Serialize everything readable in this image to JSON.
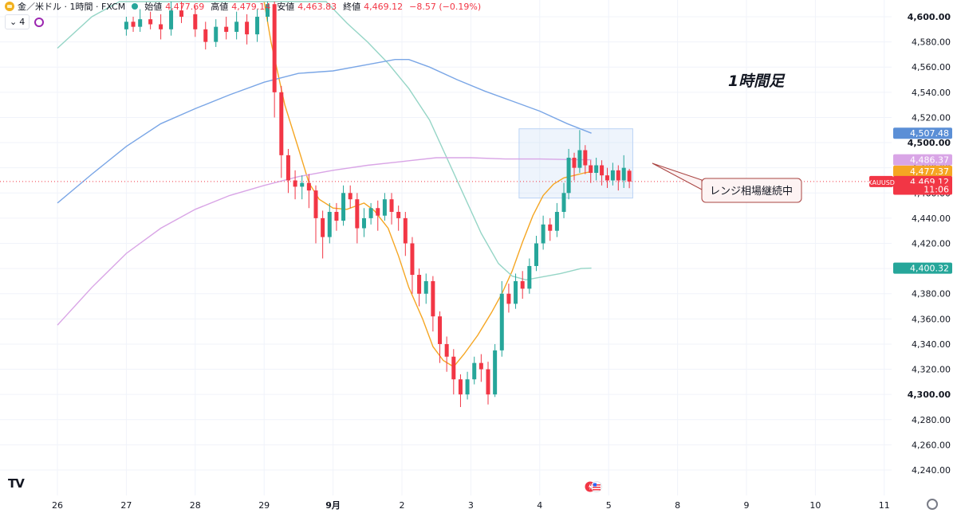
{
  "header": {
    "symbol": "金／米ドル · 1時間 · FXCM",
    "ohlc": [
      {
        "label": "始値",
        "value": "4,477.69"
      },
      {
        "label": "高値",
        "value": "4,479.14"
      },
      {
        "label": "安値",
        "value": "4,463.83"
      },
      {
        "label": "終値",
        "value": "4,469.12"
      },
      {
        "label": "",
        "value": "−8.57 (−0.19%)"
      }
    ],
    "indicator_count": "4"
  },
  "colors": {
    "up": "#26a69a",
    "down": "#f23645",
    "ma_fast": "#f5a623",
    "ma_mid": "#95d5c6",
    "ma_slow": "#7aa6e6",
    "ma_long": "#d9a5e6",
    "range_box": "#bbd3f5",
    "callout_border": "#a94442",
    "callout_bg": "#fdf3f3"
  },
  "chart_data": {
    "type": "candlestick",
    "title": "1時間足",
    "annotation": "レンジ相場継続中",
    "price_range": [
      4225,
      4612
    ],
    "y_ticks": [
      4600,
      4580,
      4560,
      4540,
      4520,
      4500,
      4480,
      4460,
      4440,
      4420,
      4400,
      4380,
      4360,
      4340,
      4320,
      4300,
      4280,
      4260,
      4240
    ],
    "y_tick_labels": [
      "4,600.00",
      "4,580.00",
      "4,560.00",
      "4,540.00",
      "4,520.00",
      "4,500.00",
      "4,480.00",
      "4,460.00",
      "4,440.00",
      "4,420.00",
      "4,400.00",
      "4,380.00",
      "4,360.00",
      "4,340.00",
      "4,320.00",
      "4,300.00",
      "4,280.00",
      "4,260.00",
      "4,240.00"
    ],
    "bold_y_ticks": [
      "4,600.00",
      "4,500.00",
      "4,400.00",
      "4,300.00"
    ],
    "x_labels": [
      "26",
      "27",
      "28",
      "29",
      "9月",
      "2",
      "3",
      "4",
      "5",
      "8",
      "9",
      "10",
      "11"
    ],
    "day_index": [
      0,
      1,
      2,
      3,
      4,
      5,
      6,
      7,
      8,
      9,
      10,
      11,
      12
    ],
    "price_labels": [
      {
        "text": "4,507.48",
        "value": 4507.48,
        "color": "#5b8fd6"
      },
      {
        "text": "4,486.37",
        "value": 4486.37,
        "color": "#d9a5e6"
      },
      {
        "text": "4,477.37",
        "value": 4477.37,
        "color": "#f5a623"
      },
      {
        "text": "4,469.12",
        "value": 4469.12,
        "color": "#f23645"
      },
      {
        "text": "11:06",
        "value": 4463.0,
        "color": "#f23645"
      },
      {
        "text": "4,400.32",
        "value": 4400.32,
        "color": "#26a69a"
      }
    ],
    "symbol_tag": "XAUUSD",
    "range_box": {
      "day_start": 6.7,
      "day_end": 8.35,
      "price_low": 4456,
      "price_high": 4511
    },
    "series": [
      {
        "name": "MA short",
        "color": "#f5a623",
        "points": [
          [
            3.0,
            4612
          ],
          [
            3.1,
            4580
          ],
          [
            3.3,
            4530
          ],
          [
            3.5,
            4495
          ],
          [
            3.65,
            4468
          ],
          [
            3.8,
            4455
          ],
          [
            4.0,
            4448
          ],
          [
            4.2,
            4447
          ],
          [
            4.45,
            4452
          ],
          [
            4.6,
            4446
          ],
          [
            4.8,
            4432
          ],
          [
            4.95,
            4410
          ],
          [
            5.1,
            4385
          ],
          [
            5.3,
            4360
          ],
          [
            5.45,
            4338
          ],
          [
            5.6,
            4327
          ],
          [
            5.75,
            4322
          ],
          [
            5.9,
            4332
          ],
          [
            6.1,
            4347
          ],
          [
            6.3,
            4365
          ],
          [
            6.45,
            4380
          ],
          [
            6.6,
            4398
          ],
          [
            6.75,
            4421
          ],
          [
            6.9,
            4442
          ],
          [
            7.05,
            4458
          ],
          [
            7.2,
            4467
          ],
          [
            7.35,
            4472
          ],
          [
            7.5,
            4474
          ],
          [
            7.65,
            4476
          ],
          [
            7.75,
            4477
          ]
        ]
      },
      {
        "name": "MA mid",
        "color": "#95d5c6",
        "points": [
          [
            0,
            4575
          ],
          [
            0.5,
            4600
          ],
          [
            0.9,
            4612
          ],
          [
            3.9,
            4612
          ],
          [
            4.2,
            4595
          ],
          [
            4.5,
            4580
          ],
          [
            4.8,
            4563
          ],
          [
            5.1,
            4543
          ],
          [
            5.4,
            4518
          ],
          [
            5.65,
            4488
          ],
          [
            5.9,
            4458
          ],
          [
            6.15,
            4428
          ],
          [
            6.4,
            4404
          ],
          [
            6.6,
            4394
          ],
          [
            6.8,
            4391
          ],
          [
            7.0,
            4393
          ],
          [
            7.3,
            4396
          ],
          [
            7.6,
            4400
          ],
          [
            7.75,
            4400.3
          ]
        ]
      },
      {
        "name": "MA slow",
        "color": "#7aa6e6",
        "points": [
          [
            0,
            4452
          ],
          [
            0.5,
            4475
          ],
          [
            1.0,
            4497
          ],
          [
            1.5,
            4515
          ],
          [
            2.0,
            4527
          ],
          [
            2.5,
            4538
          ],
          [
            3.0,
            4548
          ],
          [
            3.5,
            4555
          ],
          [
            4.0,
            4557
          ],
          [
            4.5,
            4562
          ],
          [
            4.9,
            4566
          ],
          [
            5.1,
            4566
          ],
          [
            5.4,
            4560
          ],
          [
            5.8,
            4550
          ],
          [
            6.2,
            4541
          ],
          [
            6.6,
            4533
          ],
          [
            7.0,
            4525
          ],
          [
            7.4,
            4515
          ],
          [
            7.75,
            4507.5
          ]
        ]
      },
      {
        "name": "MA long",
        "color": "#d9a5e6",
        "points": [
          [
            0,
            4355
          ],
          [
            0.5,
            4385
          ],
          [
            1.0,
            4412
          ],
          [
            1.5,
            4432
          ],
          [
            2.0,
            4447
          ],
          [
            2.5,
            4458
          ],
          [
            3.0,
            4466
          ],
          [
            3.5,
            4473
          ],
          [
            4.0,
            4478
          ],
          [
            4.5,
            4482
          ],
          [
            5.0,
            4485
          ],
          [
            5.5,
            4488
          ],
          [
            6.0,
            4488
          ],
          [
            6.5,
            4487
          ],
          [
            7.0,
            4487
          ],
          [
            7.5,
            4486.5
          ],
          [
            7.75,
            4486.4
          ]
        ]
      }
    ],
    "candles": [
      [
        1.0,
        4590,
        4596,
        4585,
        4600
      ],
      [
        1.1,
        4596,
        4592,
        4588,
        4600
      ],
      [
        1.2,
        4592,
        4598,
        4588,
        4606
      ],
      [
        1.35,
        4598,
        4594,
        4590,
        4604
      ],
      [
        1.5,
        4594,
        4590,
        4582,
        4602
      ],
      [
        1.65,
        4590,
        4605,
        4585,
        4612
      ],
      [
        1.8,
        4605,
        4600,
        4595,
        4612
      ],
      [
        2.0,
        4602,
        4590,
        4584,
        4608
      ],
      [
        2.15,
        4590,
        4580,
        4574,
        4596
      ],
      [
        2.3,
        4580,
        4592,
        4576,
        4598
      ],
      [
        2.45,
        4592,
        4588,
        4582,
        4600
      ],
      [
        2.6,
        4588,
        4596,
        4582,
        4604
      ],
      [
        2.75,
        4596,
        4586,
        4578,
        4602
      ],
      [
        2.9,
        4586,
        4600,
        4580,
        4606
      ],
      [
        3.05,
        4600,
        4610,
        4596,
        4612
      ],
      [
        3.15,
        4610,
        4540,
        4520,
        4612
      ],
      [
        3.25,
        4540,
        4490,
        4472,
        4545
      ],
      [
        3.35,
        4490,
        4470,
        4460,
        4495
      ],
      [
        3.45,
        4470,
        4465,
        4455,
        4478
      ],
      [
        3.55,
        4465,
        4468,
        4455,
        4474
      ],
      [
        3.65,
        4468,
        4462,
        4448,
        4475
      ],
      [
        3.75,
        4462,
        4440,
        4420,
        4466
      ],
      [
        3.85,
        4440,
        4425,
        4408,
        4446
      ],
      [
        3.95,
        4425,
        4445,
        4420,
        4452
      ],
      [
        4.05,
        4445,
        4438,
        4430,
        4452
      ],
      [
        4.15,
        4438,
        4460,
        4434,
        4466
      ],
      [
        4.25,
        4460,
        4455,
        4448,
        4466
      ],
      [
        4.35,
        4455,
        4432,
        4420,
        4460
      ],
      [
        4.45,
        4432,
        4440,
        4425,
        4448
      ],
      [
        4.55,
        4440,
        4448,
        4435,
        4452
      ],
      [
        4.65,
        4448,
        4442,
        4430,
        4454
      ],
      [
        4.75,
        4442,
        4455,
        4438,
        4460
      ],
      [
        4.85,
        4455,
        4445,
        4435,
        4460
      ],
      [
        4.95,
        4445,
        4440,
        4430,
        4450
      ],
      [
        5.05,
        4440,
        4420,
        4410,
        4445
      ],
      [
        5.15,
        4420,
        4395,
        4380,
        4425
      ],
      [
        5.25,
        4395,
        4380,
        4370,
        4400
      ],
      [
        5.35,
        4380,
        4390,
        4372,
        4396
      ],
      [
        5.45,
        4390,
        4362,
        4350,
        4394
      ],
      [
        5.55,
        4362,
        4340,
        4325,
        4366
      ],
      [
        5.65,
        4340,
        4330,
        4318,
        4346
      ],
      [
        5.75,
        4330,
        4312,
        4300,
        4336
      ],
      [
        5.85,
        4312,
        4300,
        4290,
        4316
      ],
      [
        5.95,
        4300,
        4312,
        4296,
        4318
      ],
      [
        6.05,
        4312,
        4325,
        4308,
        4330
      ],
      [
        6.15,
        4325,
        4320,
        4310,
        4332
      ],
      [
        6.25,
        4320,
        4300,
        4292,
        4326
      ],
      [
        6.35,
        4300,
        4335,
        4298,
        4340
      ],
      [
        6.45,
        4335,
        4380,
        4330,
        4390
      ],
      [
        6.55,
        4380,
        4372,
        4365,
        4388
      ],
      [
        6.65,
        4372,
        4390,
        4368,
        4396
      ],
      [
        6.75,
        4390,
        4384,
        4376,
        4398
      ],
      [
        6.85,
        4384,
        4402,
        4380,
        4408
      ],
      [
        6.95,
        4402,
        4420,
        4398,
        4426
      ],
      [
        7.05,
        4420,
        4435,
        4415,
        4442
      ],
      [
        7.15,
        4435,
        4430,
        4422,
        4440
      ],
      [
        7.25,
        4430,
        4445,
        4425,
        4452
      ],
      [
        7.35,
        4445,
        4460,
        4440,
        4468
      ],
      [
        7.42,
        4460,
        4488,
        4455,
        4495
      ],
      [
        7.5,
        4488,
        4480,
        4470,
        4492
      ],
      [
        7.58,
        4480,
        4494,
        4476,
        4510
      ],
      [
        7.66,
        4494,
        4482,
        4475,
        4498
      ],
      [
        7.74,
        4482,
        4476,
        4468,
        4486
      ],
      [
        7.82,
        4476,
        4482,
        4470,
        4488
      ],
      [
        7.9,
        4482,
        4474,
        4466,
        4486
      ],
      [
        7.98,
        4474,
        4470,
        4464,
        4480
      ],
      [
        8.06,
        4470,
        4478,
        4466,
        4484
      ],
      [
        8.14,
        4478,
        4470,
        4462,
        4482
      ],
      [
        8.22,
        4470,
        4480,
        4464,
        4490
      ],
      [
        8.3,
        4477.69,
        4469.12,
        4463.83,
        4479.14
      ]
    ]
  },
  "icons": {
    "logo": "tradingview-logo",
    "settings": "gear-icon",
    "event": "economic-event-icon"
  }
}
